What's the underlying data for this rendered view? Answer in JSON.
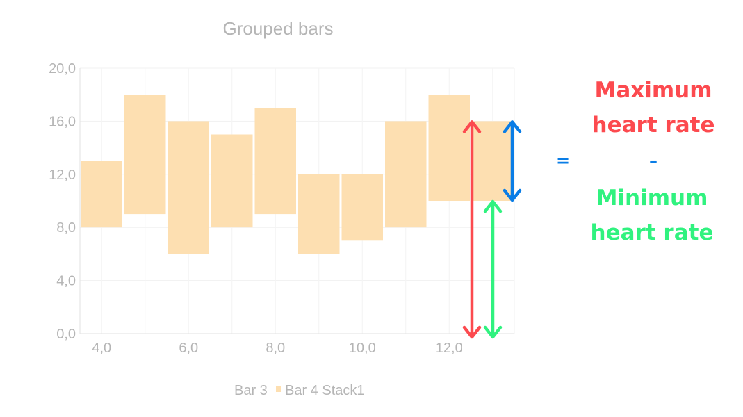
{
  "chart_data": {
    "type": "bar",
    "title": "Grouped bars",
    "xlabel": "",
    "ylabel": "",
    "xlim": [
      3.5,
      13.5
    ],
    "ylim": [
      0,
      20
    ],
    "x_ticks": [
      "4,0",
      "6,0",
      "8,0",
      "10,0",
      "12,0"
    ],
    "y_ticks": [
      "0,0",
      "4,0",
      "8,0",
      "12,0",
      "16,0",
      "20,0"
    ],
    "grid": true,
    "legend_position": "bottom",
    "legend": [
      {
        "label": "Bar 3",
        "color": "",
        "shown_marker": false
      },
      {
        "label": "Bar 4 Stack1",
        "color": "#fddfb1",
        "shown_marker": true
      }
    ],
    "series": [
      {
        "name": "Bar 4 Stack1",
        "color": "#fddfb1",
        "x": [
          4,
          5,
          6,
          7,
          8,
          9,
          10,
          11,
          12,
          13
        ],
        "low": [
          8,
          9,
          6,
          8,
          9,
          6,
          7,
          8,
          10,
          10
        ],
        "high": [
          13,
          18,
          16,
          15,
          17,
          12,
          12,
          16,
          18,
          16
        ]
      }
    ]
  },
  "annotation": {
    "max_label_line1": "Maximum",
    "max_label_line2": "heart rate",
    "minus_sign": "–",
    "min_label_line1": "Minimum",
    "min_label_line2": "heart rate",
    "equals_sign": "=",
    "max_color": "#fc4a4f",
    "min_color": "#30f27f",
    "range_color": "#0a7de6",
    "max_arrow_value": 16,
    "min_arrow_value": 10,
    "arrow_base_value": 0
  }
}
